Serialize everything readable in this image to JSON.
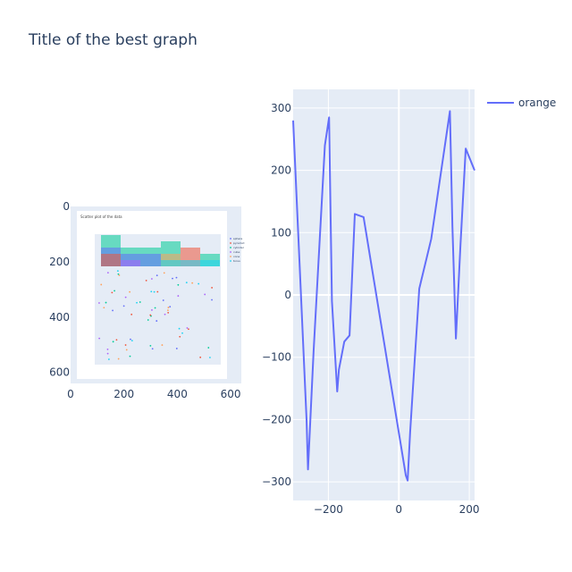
{
  "title": "Title of the best graph",
  "colors": {
    "plot_bg": "#e5ecf6",
    "grid": "#ffffff",
    "line": "#636efa",
    "text": "#2a3f5f"
  },
  "chart_data": [
    {
      "type": "image",
      "xlim": [
        0,
        640
      ],
      "ylim": [
        640,
        0
      ],
      "x_ticks": [
        0,
        200,
        400,
        600
      ],
      "y_ticks": [
        0,
        200,
        400,
        600
      ],
      "x_tick_labels": [
        "0",
        "200",
        "400",
        "600"
      ],
      "y_tick_labels": [
        "0",
        "200",
        "400",
        "600"
      ],
      "embedded": {
        "title": "Scatter plot of the data",
        "legend": [
          "sphere",
          "pyramid",
          "cylinder",
          "cube",
          "cone",
          "torus"
        ],
        "legend_colors": [
          "#636efa",
          "#ef553b",
          "#00cc96",
          "#ab63fa",
          "#ffa15a",
          "#19d3f3"
        ]
      }
    },
    {
      "type": "line",
      "xlim": [
        -300,
        215
      ],
      "ylim": [
        -330,
        330
      ],
      "x_ticks": [
        -200,
        0,
        200
      ],
      "y_ticks": [
        -300,
        -200,
        -100,
        0,
        100,
        200,
        300
      ],
      "x_tick_labels": [
        "−200",
        "0",
        "200"
      ],
      "y_tick_labels": [
        "−300",
        "−200",
        "−100",
        "0",
        "100",
        "200",
        "300"
      ],
      "series": [
        {
          "name": "orange",
          "color": "#636efa",
          "x": [
            -300,
            -262,
            -258,
            -242,
            -210,
            -198,
            -190,
            -175,
            -170,
            -155,
            -140,
            -125,
            -100,
            20,
            25,
            32,
            58,
            92,
            145,
            152,
            162,
            175,
            190,
            215
          ],
          "y": [
            280,
            -200,
            -280,
            -90,
            240,
            285,
            -10,
            -155,
            -120,
            -75,
            -65,
            130,
            125,
            -290,
            -298,
            -220,
            10,
            90,
            295,
            110,
            -70,
            80,
            235,
            200
          ]
        }
      ]
    }
  ]
}
